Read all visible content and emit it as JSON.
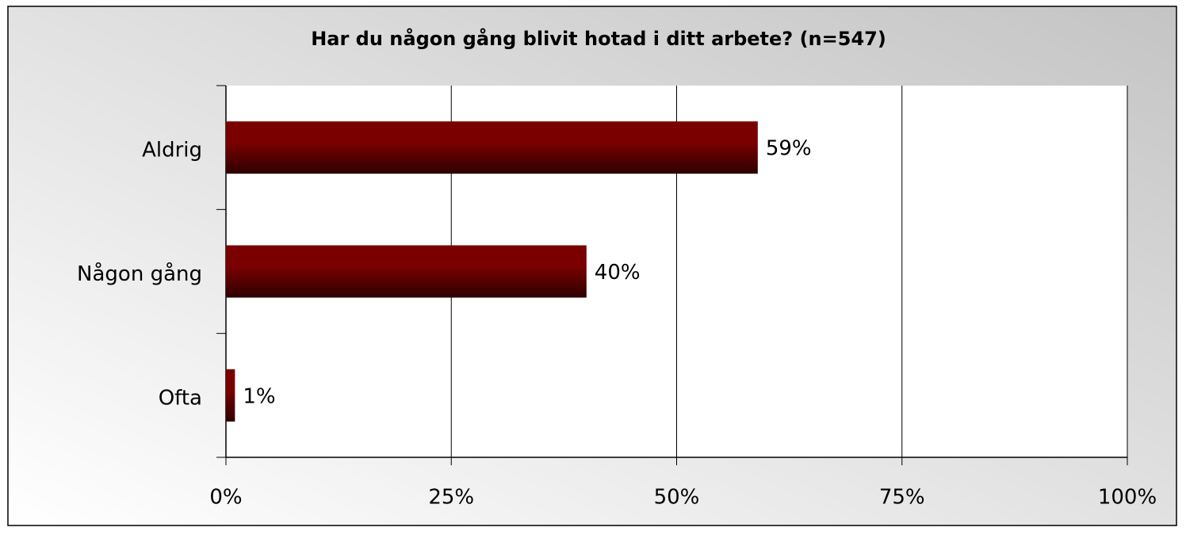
{
  "chart_data": {
    "type": "bar",
    "orientation": "horizontal",
    "title": "Har du någon gång blivit hotad i ditt arbete? (n=547)",
    "categories": [
      "Aldrig",
      "Någon gång",
      "Ofta"
    ],
    "values": [
      59,
      40,
      1
    ],
    "value_labels": [
      "59%",
      "40%",
      "1%"
    ],
    "color": "#7a0000",
    "xlim": [
      0,
      100
    ],
    "xticks": [
      {
        "value": 0,
        "label": "0%"
      },
      {
        "value": 25,
        "label": "25%"
      },
      {
        "value": 50,
        "label": "50%"
      },
      {
        "value": 75,
        "label": "75%"
      },
      {
        "value": 100,
        "label": "100%"
      }
    ],
    "grid": true
  }
}
